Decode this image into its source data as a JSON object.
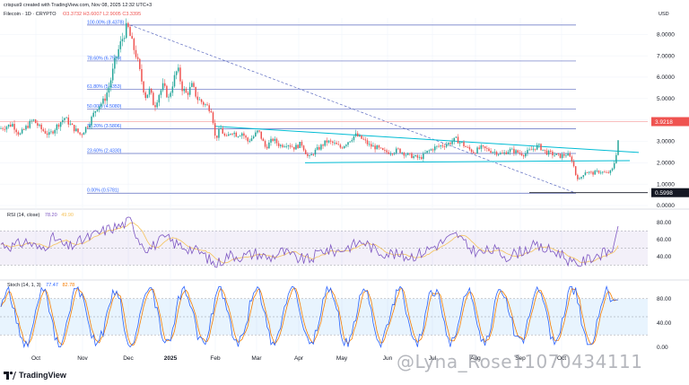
{
  "header": {
    "credit": "crispus9 created with TradingView.com, Nov 08, 2025 12:32 UTC+3",
    "symbol": "Filecoin · 1D · CRYPTO",
    "ohlc": "O3.3732  H3.6007  L2.9005  C3.3395",
    "currency": "USD"
  },
  "branding": {
    "logo_text": "TradingView",
    "watermark": "@Lyna_Rose11070434111"
  },
  "colors": {
    "up": "#26a69a",
    "down": "#ef5350",
    "trend": "#00bcd4",
    "fib": "#2962ff",
    "rsi": "#7e57c2",
    "rsi_ma": "#f5c35c",
    "stoch_k": "#2962ff",
    "stoch_d": "#f57c00",
    "price_label": "#ef5350"
  },
  "chart_data": [
    {
      "type": "candlestick",
      "title": "Filecoin · 1D · CRYPTO",
      "x_ticks": [
        "Oct",
        "Nov",
        "Dec",
        "2025",
        "Feb",
        "Mar",
        "Apr",
        "May",
        "Jun",
        "Jul",
        "Aug",
        "Sep",
        "Oct"
      ],
      "y_ticks": [
        "8.0000",
        "7.0000",
        "6.0000",
        "5.0000",
        "4.0000",
        "3.0000",
        "2.0000",
        "1.0000",
        "0.0000"
      ],
      "ylim": [
        0,
        8.6
      ],
      "last_price": "3.9218",
      "low_marker": "0.5998",
      "series": [
        {
          "name": "Filecoin",
          "anchors": [
            [
              0,
              3.6
            ],
            [
              14,
              3.8
            ],
            [
              22,
              3.3
            ],
            [
              30,
              3.7
            ],
            [
              37,
              4.0
            ],
            [
              45,
              3.6
            ],
            [
              55,
              3.3
            ],
            [
              65,
              3.8
            ],
            [
              72,
              4.1
            ],
            [
              80,
              3.7
            ],
            [
              90,
              3.3
            ],
            [
              100,
              3.9
            ],
            [
              108,
              4.6
            ],
            [
              116,
              4.9
            ],
            [
              122,
              5.6
            ],
            [
              128,
              6.7
            ],
            [
              133,
              7.4
            ],
            [
              138,
              8.0
            ],
            [
              142,
              8.4
            ],
            [
              147,
              7.6
            ],
            [
              152,
              7.0
            ],
            [
              157,
              6.0
            ],
            [
              162,
              5.1
            ],
            [
              167,
              5.4
            ],
            [
              172,
              4.6
            ],
            [
              177,
              5.2
            ],
            [
              182,
              5.6
            ],
            [
              188,
              5.0
            ],
            [
              193,
              5.8
            ],
            [
              198,
              6.4
            ],
            [
              203,
              5.5
            ],
            [
              208,
              5.2
            ],
            [
              214,
              5.6
            ],
            [
              220,
              5.0
            ],
            [
              226,
              4.8
            ],
            [
              232,
              4.6
            ],
            [
              236,
              4.5
            ],
            [
              240,
              3.1
            ],
            [
              246,
              3.6
            ],
            [
              252,
              3.1
            ],
            [
              258,
              3.5
            ],
            [
              264,
              3.3
            ],
            [
              270,
              3.4
            ],
            [
              276,
              3.0
            ],
            [
              282,
              3.2
            ],
            [
              288,
              3.5
            ],
            [
              296,
              2.7
            ],
            [
              304,
              3.1
            ],
            [
              312,
              2.8
            ],
            [
              320,
              2.9
            ],
            [
              328,
              2.7
            ],
            [
              336,
              2.9
            ],
            [
              344,
              2.2
            ],
            [
              350,
              2.5
            ],
            [
              356,
              2.7
            ],
            [
              364,
              3.0
            ],
            [
              372,
              2.9
            ],
            [
              380,
              2.7
            ],
            [
              388,
              3.0
            ],
            [
              396,
              3.3
            ],
            [
              404,
              3.1
            ],
            [
              412,
              2.8
            ],
            [
              420,
              2.7
            ],
            [
              428,
              2.5
            ],
            [
              436,
              2.5
            ],
            [
              444,
              2.6
            ],
            [
              452,
              2.4
            ],
            [
              460,
              2.3
            ],
            [
              468,
              2.2
            ],
            [
              476,
              2.5
            ],
            [
              484,
              2.7
            ],
            [
              492,
              2.8
            ],
            [
              500,
              2.9
            ],
            [
              508,
              3.1
            ],
            [
              515,
              2.9
            ],
            [
              520,
              2.7
            ],
            [
              528,
              2.5
            ],
            [
              536,
              2.7
            ],
            [
              544,
              2.6
            ],
            [
              552,
              2.5
            ],
            [
              560,
              2.4
            ],
            [
              568,
              2.6
            ],
            [
              576,
              2.5
            ],
            [
              584,
              2.4
            ],
            [
              592,
              2.6
            ],
            [
              600,
              2.8
            ],
            [
              608,
              2.5
            ],
            [
              616,
              2.4
            ],
            [
              624,
              2.3
            ],
            [
              632,
              2.4
            ],
            [
              638,
              2.1
            ],
            [
              642,
              1.4
            ],
            [
              646,
              1.2
            ],
            [
              652,
              1.6
            ],
            [
              660,
              1.5
            ],
            [
              668,
              1.6
            ],
            [
              676,
              1.5
            ],
            [
              682,
              1.6
            ],
            [
              686,
              2.2
            ],
            [
              690,
              3.34
            ]
          ]
        }
      ],
      "fibonacci": [
        {
          "label": "100.00% (8.4378)",
          "value": 8.4378
        },
        {
          "label": "78.60% (6.7559)",
          "value": 6.7559
        },
        {
          "label": "61.80% (5.4353)",
          "value": 5.4353
        },
        {
          "label": "50.00% (4.5080)",
          "value": 4.508
        },
        {
          "label": "38.20% (3.5806)",
          "value": 3.5806
        },
        {
          "label": "23.60% (2.4330)",
          "value": 2.433
        },
        {
          "label": "0.00% (0.5781)",
          "value": 0.5781
        }
      ]
    },
    {
      "type": "line",
      "title": "RSI (14, close)",
      "values_text": [
        "78.20",
        "49.90"
      ],
      "y_ticks": [
        "80.00",
        "60.00",
        "40.00"
      ],
      "ylim": [
        20,
        88
      ],
      "band": [
        30,
        70
      ],
      "series": [
        {
          "name": "RSI",
          "anchors": [
            [
              0,
              55
            ],
            [
              15,
              52
            ],
            [
              30,
              58
            ],
            [
              45,
              48
            ],
            [
              60,
              62
            ],
            [
              75,
              50
            ],
            [
              90,
              58
            ],
            [
              105,
              65
            ],
            [
              120,
              72
            ],
            [
              135,
              76
            ],
            [
              145,
              82
            ],
            [
              155,
              60
            ],
            [
              165,
              48
            ],
            [
              175,
              56
            ],
            [
              185,
              62
            ],
            [
              195,
              55
            ],
            [
              210,
              50
            ],
            [
              225,
              44
            ],
            [
              240,
              30
            ],
            [
              255,
              42
            ],
            [
              270,
              40
            ],
            [
              285,
              44
            ],
            [
              300,
              38
            ],
            [
              315,
              46
            ],
            [
              330,
              38
            ],
            [
              345,
              36
            ],
            [
              360,
              48
            ],
            [
              375,
              46
            ],
            [
              390,
              52
            ],
            [
              405,
              58
            ],
            [
              420,
              46
            ],
            [
              435,
              44
            ],
            [
              450,
              40
            ],
            [
              465,
              42
            ],
            [
              480,
              50
            ],
            [
              495,
              58
            ],
            [
              510,
              66
            ],
            [
              520,
              52
            ],
            [
              535,
              44
            ],
            [
              550,
              48
            ],
            [
              565,
              40
            ],
            [
              580,
              46
            ],
            [
              595,
              52
            ],
            [
              610,
              48
            ],
            [
              625,
              44
            ],
            [
              640,
              30
            ],
            [
              650,
              34
            ],
            [
              665,
              42
            ],
            [
              675,
              44
            ],
            [
              683,
              48
            ],
            [
              690,
              80
            ]
          ]
        }
      ]
    },
    {
      "type": "line",
      "title": "Stoch (14, 1, 3)",
      "values_text": [
        "77.47",
        "82.78"
      ],
      "y_ticks": [
        "80.00",
        "40.00",
        "0.00"
      ],
      "ylim": [
        -5,
        102
      ],
      "band": [
        20,
        80
      ]
    }
  ]
}
